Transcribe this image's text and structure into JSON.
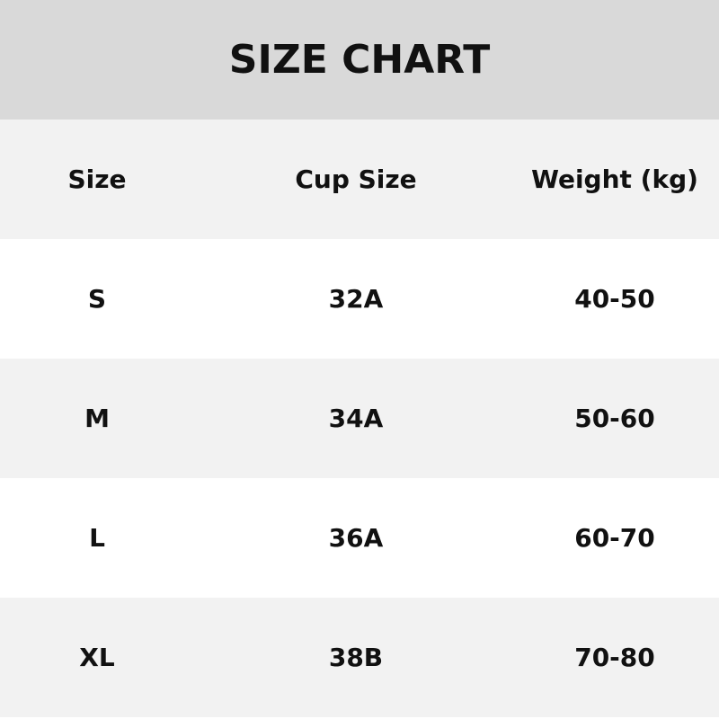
{
  "title": "SIZE CHART",
  "headers": [
    "Size",
    "Cup Size",
    "Weight (kg)"
  ],
  "rows": [
    [
      "S",
      "32A",
      "40-50"
    ],
    [
      "M",
      "34A",
      "50-60"
    ],
    [
      "L",
      "36A",
      "60-70"
    ],
    [
      "XL",
      "38B",
      "70-80"
    ]
  ],
  "colors": {
    "title_band": "#d9d9d9",
    "shaded_row": "#f2f2f2",
    "white_row": "#ffffff",
    "text": "#111111"
  }
}
